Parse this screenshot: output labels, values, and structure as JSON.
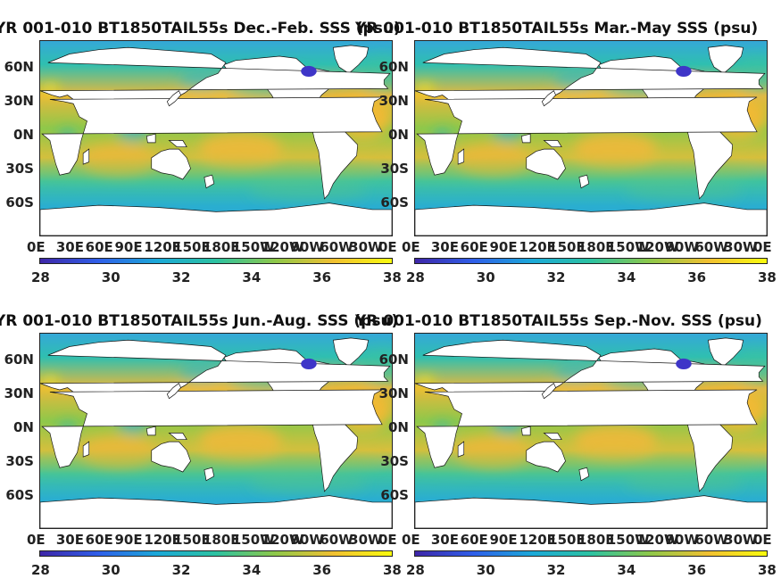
{
  "chart_data": [
    {
      "type": "heatmap",
      "title": "YR 001-010 BT1850TAIL55s Dec.-Feb. SSS (psu)",
      "ytick_labels": [
        "60N",
        "30N",
        "0N",
        "30S",
        "60S"
      ],
      "xtick_labels": [
        "0E",
        "30E",
        "60E",
        "90E",
        "120E",
        "150E",
        "180E",
        "150W",
        "120W",
        "90W",
        "60W",
        "30W",
        "0E"
      ],
      "colorbar": {
        "ticks": [
          "28",
          "30",
          "32",
          "34",
          "36",
          "38"
        ],
        "range": [
          28,
          38
        ]
      }
    },
    {
      "type": "heatmap",
      "title": "YR 001-010 BT1850TAIL55s Mar.-May SSS (psu)",
      "ytick_labels": [
        "60N",
        "30N",
        "0N",
        "30S",
        "60S"
      ],
      "xtick_labels": [
        "0E",
        "30E",
        "60E",
        "90E",
        "120E",
        "150E",
        "180E",
        "150W",
        "120W",
        "90W",
        "60W",
        "30W",
        "0E"
      ],
      "colorbar": {
        "ticks": [
          "28",
          "30",
          "32",
          "34",
          "36",
          "38"
        ],
        "range": [
          28,
          38
        ]
      }
    },
    {
      "type": "heatmap",
      "title": "YR 001-010 BT1850TAIL55s Jun.-Aug. SSS (psu)",
      "ytick_labels": [
        "60N",
        "30N",
        "0N",
        "30S",
        "60S"
      ],
      "xtick_labels": [
        "0E",
        "30E",
        "60E",
        "90E",
        "120E",
        "150E",
        "180E",
        "150W",
        "120W",
        "90W",
        "60W",
        "30W",
        "0E"
      ],
      "colorbar": {
        "ticks": [
          "28",
          "30",
          "32",
          "34",
          "36",
          "38"
        ],
        "range": [
          28,
          38
        ]
      }
    },
    {
      "type": "heatmap",
      "title": "YR 001-010 BT1850TAIL55s Sep.-Nov. SSS (psu)",
      "ytick_labels": [
        "60N",
        "30N",
        "0N",
        "30S",
        "60S"
      ],
      "xtick_labels": [
        "0E",
        "30E",
        "60E",
        "90E",
        "120E",
        "150E",
        "180E",
        "150W",
        "120W",
        "90W",
        "60W",
        "30W",
        "0E"
      ],
      "colorbar": {
        "ticks": [
          "28",
          "30",
          "32",
          "34",
          "36",
          "38"
        ],
        "range": [
          28,
          38
        ]
      }
    }
  ]
}
